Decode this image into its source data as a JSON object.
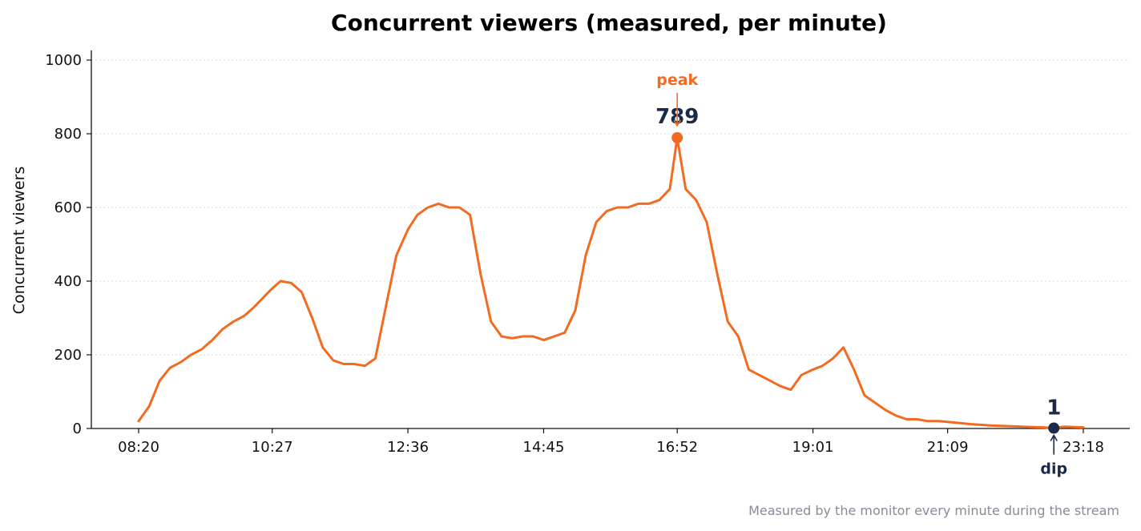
{
  "chart_data": {
    "type": "line",
    "title": "Concurrent viewers (measured, per minute)",
    "xlabel": "",
    "ylabel": "Concurrent viewers",
    "x_tick_labels": [
      "08:20",
      "10:27",
      "12:36",
      "14:45",
      "16:52",
      "19:01",
      "21:09",
      "23:18"
    ],
    "y_ticks": [
      0,
      200,
      400,
      600,
      800,
      1000
    ],
    "ylim": [
      0,
      1000
    ],
    "xlim": [
      "08:20",
      "23:18"
    ],
    "grid": "horizontal dotted",
    "series": [
      {
        "name": "",
        "color": "#f26b21",
        "points": [
          [
            "08:20",
            20
          ],
          [
            "08:30",
            60
          ],
          [
            "08:40",
            130
          ],
          [
            "08:50",
            165
          ],
          [
            "09:00",
            180
          ],
          [
            "09:10",
            200
          ],
          [
            "09:20",
            215
          ],
          [
            "09:30",
            240
          ],
          [
            "09:40",
            270
          ],
          [
            "09:50",
            290
          ],
          [
            "10:00",
            305
          ],
          [
            "10:10",
            330
          ],
          [
            "10:20",
            360
          ],
          [
            "10:27",
            380
          ],
          [
            "10:35",
            400
          ],
          [
            "10:45",
            395
          ],
          [
            "10:55",
            370
          ],
          [
            "11:05",
            300
          ],
          [
            "11:15",
            220
          ],
          [
            "11:25",
            185
          ],
          [
            "11:35",
            175
          ],
          [
            "11:45",
            175
          ],
          [
            "11:55",
            170
          ],
          [
            "12:05",
            190
          ],
          [
            "12:15",
            330
          ],
          [
            "12:25",
            470
          ],
          [
            "12:36",
            540
          ],
          [
            "12:45",
            580
          ],
          [
            "12:55",
            600
          ],
          [
            "13:05",
            610
          ],
          [
            "13:15",
            600
          ],
          [
            "13:25",
            600
          ],
          [
            "13:35",
            580
          ],
          [
            "13:45",
            420
          ],
          [
            "13:55",
            290
          ],
          [
            "14:05",
            250
          ],
          [
            "14:15",
            245
          ],
          [
            "14:25",
            250
          ],
          [
            "14:35",
            250
          ],
          [
            "14:45",
            240
          ],
          [
            "14:55",
            250
          ],
          [
            "15:05",
            260
          ],
          [
            "15:15",
            320
          ],
          [
            "15:25",
            470
          ],
          [
            "15:35",
            560
          ],
          [
            "15:45",
            590
          ],
          [
            "15:55",
            600
          ],
          [
            "16:05",
            600
          ],
          [
            "16:15",
            610
          ],
          [
            "16:25",
            610
          ],
          [
            "16:35",
            620
          ],
          [
            "16:45",
            650
          ],
          [
            "16:52",
            789
          ],
          [
            "17:00",
            650
          ],
          [
            "17:10",
            620
          ],
          [
            "17:20",
            560
          ],
          [
            "17:30",
            420
          ],
          [
            "17:40",
            290
          ],
          [
            "17:50",
            250
          ],
          [
            "18:00",
            160
          ],
          [
            "18:10",
            145
          ],
          [
            "18:20",
            130
          ],
          [
            "18:30",
            115
          ],
          [
            "18:40",
            105
          ],
          [
            "18:50",
            145
          ],
          [
            "19:01",
            160
          ],
          [
            "19:10",
            170
          ],
          [
            "19:20",
            190
          ],
          [
            "19:30",
            220
          ],
          [
            "19:40",
            160
          ],
          [
            "19:50",
            90
          ],
          [
            "20:00",
            70
          ],
          [
            "20:10",
            50
          ],
          [
            "20:20",
            35
          ],
          [
            "20:30",
            25
          ],
          [
            "20:40",
            25
          ],
          [
            "20:50",
            20
          ],
          [
            "21:00",
            20
          ],
          [
            "21:09",
            18
          ],
          [
            "21:20",
            15
          ],
          [
            "21:30",
            12
          ],
          [
            "21:40",
            10
          ],
          [
            "21:50",
            8
          ],
          [
            "22:00",
            7
          ],
          [
            "22:10",
            6
          ],
          [
            "22:20",
            5
          ],
          [
            "22:30",
            4
          ],
          [
            "22:40",
            3
          ],
          [
            "22:50",
            1
          ],
          [
            "23:00",
            5
          ],
          [
            "23:10",
            4
          ],
          [
            "23:18",
            3
          ]
        ]
      }
    ],
    "annotations": [
      {
        "label": "peak",
        "value_label": "789",
        "x": "16:52",
        "y": 789,
        "color": "#f26b21"
      },
      {
        "label": "dip",
        "value_label": "1",
        "x": "22:50",
        "y": 1,
        "color": "#1b2a4a"
      }
    ],
    "caption": "Measured by the monitor every minute during the stream"
  }
}
